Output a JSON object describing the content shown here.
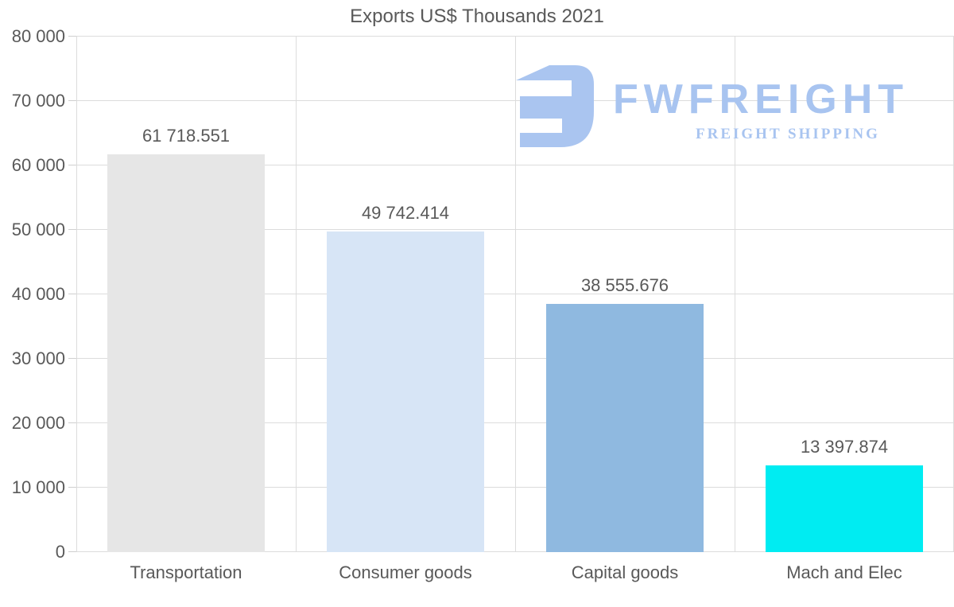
{
  "title": "Exports US$ Thousands 2021",
  "watermark": {
    "brand": "FWFREIGHT",
    "tagline": "FREIGHT SHIPPING",
    "color": "#a8c4f0"
  },
  "chart_data": {
    "type": "bar",
    "title": "Exports US$ Thousands 2021",
    "categories": [
      "Transportation",
      "Consumer goods",
      "Capital goods",
      "Mach and Elec"
    ],
    "values": [
      61718.551,
      49742.414,
      38555.676,
      13397.874
    ],
    "value_labels": [
      "61 718.551",
      "49 742.414",
      "38 555.676",
      "13 397.874"
    ],
    "bar_colors": [
      "#e6e6e6",
      "#d7e5f6",
      "#8fb9e0",
      "#00ecf2"
    ],
    "xlabel": "",
    "ylabel": "",
    "ylim": [
      0,
      80000
    ],
    "ytick_interval": 10000,
    "ytick_labels": [
      "0",
      "10 000",
      "20 000",
      "30 000",
      "40 000",
      "50 000",
      "60 000",
      "70 000",
      "80 000"
    ],
    "grid": true,
    "legend": false,
    "text_color": "#595959",
    "grid_color": "#dcdcdc",
    "tick_color": "#cfcfcf"
  }
}
